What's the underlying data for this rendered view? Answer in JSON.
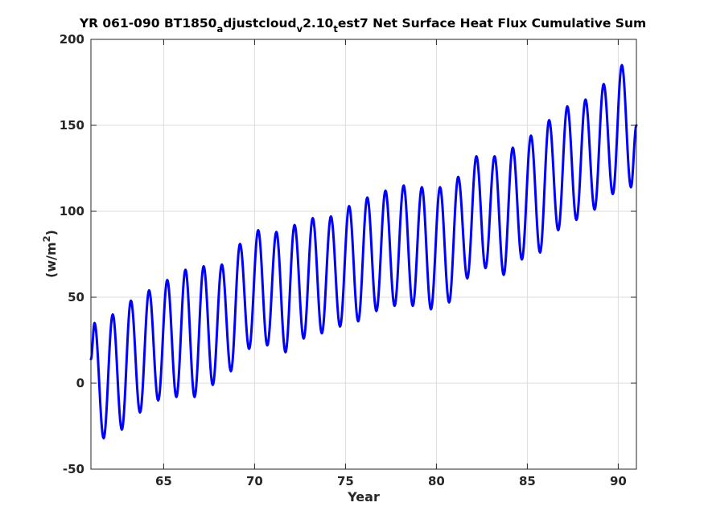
{
  "chart_data": {
    "type": "line",
    "title": {
      "prefix": "YR 061-090 BT1850",
      "sub1": "a",
      "mid1": "djustcloud",
      "sub2": "v",
      "mid2": "2.10",
      "sub3": "t",
      "suffix": "est7 Net Surface Heat Flux  Cumulative Sum"
    },
    "xlabel": "Year",
    "ylabel": {
      "base": "(w/m",
      "sup": "2",
      "close": ")"
    },
    "xlim": [
      61,
      91
    ],
    "ylim": [
      -50,
      200
    ],
    "xticks": [
      65,
      70,
      75,
      80,
      85,
      90
    ],
    "yticks": [
      -50,
      0,
      50,
      100,
      150,
      200
    ],
    "grid": true,
    "line_color": "#0000ff",
    "series": [
      {
        "peaks": [
          [
            61.2,
            35
          ],
          [
            62.2,
            40
          ],
          [
            63.2,
            48
          ],
          [
            64.2,
            54
          ],
          [
            65.2,
            60
          ],
          [
            66.2,
            66
          ],
          [
            67.2,
            68
          ],
          [
            68.2,
            69
          ],
          [
            69.2,
            81
          ],
          [
            70.2,
            89
          ],
          [
            71.2,
            88
          ],
          [
            72.2,
            92
          ],
          [
            73.2,
            96
          ],
          [
            74.2,
            97
          ],
          [
            75.2,
            103
          ],
          [
            76.2,
            108
          ],
          [
            77.2,
            112
          ],
          [
            78.2,
            115
          ],
          [
            79.2,
            114
          ],
          [
            80.2,
            114
          ],
          [
            81.2,
            120
          ],
          [
            82.2,
            132
          ],
          [
            83.2,
            132
          ],
          [
            84.2,
            137
          ],
          [
            85.2,
            144
          ],
          [
            86.2,
            153
          ],
          [
            87.2,
            161
          ],
          [
            88.2,
            165
          ],
          [
            89.2,
            174
          ],
          [
            90.2,
            185
          ]
        ],
        "troughs": [
          [
            61.0,
            14
          ],
          [
            61.7,
            -32
          ],
          [
            62.7,
            -27
          ],
          [
            63.7,
            -17
          ],
          [
            64.7,
            -10
          ],
          [
            65.7,
            -8
          ],
          [
            66.7,
            -8
          ],
          [
            67.7,
            -1
          ],
          [
            68.7,
            7
          ],
          [
            69.7,
            20
          ],
          [
            70.7,
            22
          ],
          [
            71.7,
            18
          ],
          [
            72.7,
            26
          ],
          [
            73.7,
            29
          ],
          [
            74.7,
            33
          ],
          [
            75.7,
            36
          ],
          [
            76.7,
            42
          ],
          [
            77.7,
            45
          ],
          [
            78.7,
            45
          ],
          [
            79.7,
            43
          ],
          [
            80.7,
            47
          ],
          [
            81.7,
            61
          ],
          [
            82.7,
            67
          ],
          [
            83.7,
            63
          ],
          [
            84.7,
            72
          ],
          [
            85.7,
            76
          ],
          [
            86.7,
            89
          ],
          [
            87.7,
            95
          ],
          [
            88.7,
            101
          ],
          [
            89.7,
            110
          ],
          [
            90.7,
            114
          ],
          [
            91.0,
            150
          ]
        ]
      }
    ]
  }
}
